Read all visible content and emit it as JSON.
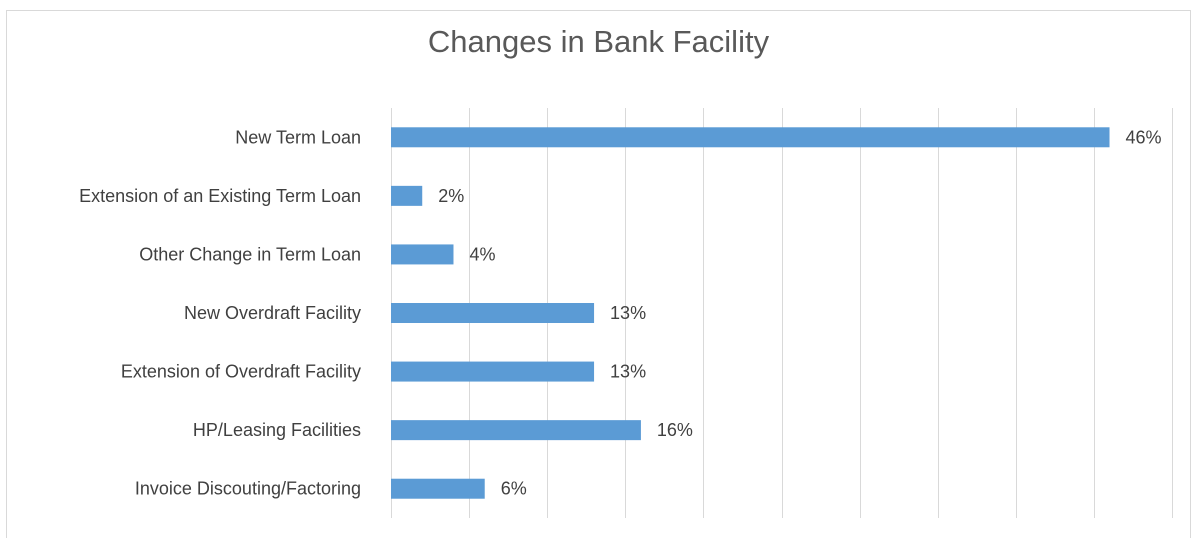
{
  "chart_data": {
    "type": "bar",
    "orientation": "horizontal",
    "title": "Changes in Bank Facility",
    "categories": [
      "New Term Loan",
      "Extension of an Existing Term Loan",
      "Other Change in Term Loan",
      "New Overdraft Facility",
      "Extension of Overdraft Facility",
      "HP/Leasing Facilities",
      "Invoice Discouting/Factoring"
    ],
    "values": [
      46,
      2,
      4,
      13,
      13,
      16,
      6
    ],
    "value_labels": [
      "46%",
      "2%",
      "4%",
      "13%",
      "13%",
      "16%",
      "6%"
    ],
    "unit": "%",
    "xlim": [
      0,
      50
    ],
    "grid": "vertical",
    "legend": "none",
    "bar_color": "#5b9bd5"
  }
}
